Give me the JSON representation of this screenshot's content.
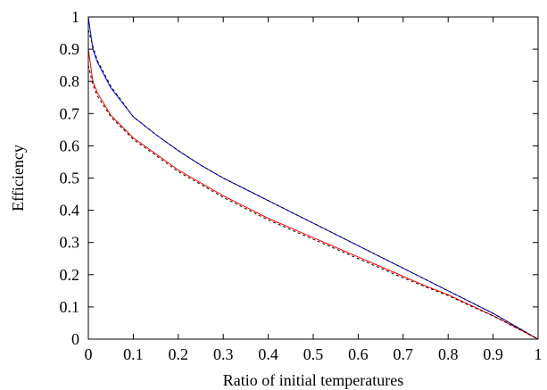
{
  "chart_data": {
    "type": "line",
    "title": "",
    "xlabel": "Ratio of initial temperatures",
    "ylabel": "Efficiency",
    "xlim": [
      0,
      1
    ],
    "ylim": [
      0,
      1
    ],
    "xticks": [
      "0",
      "0.1",
      "0.2",
      "0.3",
      "0.4",
      "0.5",
      "0.6",
      "0.7",
      "0.8",
      "0.9",
      "1"
    ],
    "yticks": [
      "0",
      "0.1",
      "0.2",
      "0.3",
      "0.4",
      "0.5",
      "0.6",
      "0.7",
      "0.8",
      "0.9",
      "1"
    ],
    "grid": false,
    "legend": "none",
    "series": [
      {
        "color": "#0000ff",
        "dash": "solid",
        "points": [
          [
            0,
            1.0
          ],
          [
            0.01,
            0.9
          ],
          [
            0.02,
            0.86
          ],
          [
            0.05,
            0.78
          ],
          [
            0.1,
            0.69
          ],
          [
            0.15,
            0.635
          ],
          [
            0.2,
            0.585
          ],
          [
            0.25,
            0.54
          ],
          [
            0.3,
            0.5
          ],
          [
            0.35,
            0.465
          ],
          [
            0.4,
            0.43
          ],
          [
            0.45,
            0.395
          ],
          [
            0.5,
            0.36
          ],
          [
            0.55,
            0.325
          ],
          [
            0.6,
            0.29
          ],
          [
            0.65,
            0.255
          ],
          [
            0.7,
            0.22
          ],
          [
            0.75,
            0.185
          ],
          [
            0.8,
            0.15
          ],
          [
            0.85,
            0.115
          ],
          [
            0.9,
            0.08
          ],
          [
            0.95,
            0.04
          ],
          [
            1,
            0
          ]
        ]
      },
      {
        "color": "#000000",
        "dash": "dashed",
        "points": [
          [
            0,
            0.96
          ],
          [
            0.01,
            0.91
          ],
          [
            0.02,
            0.865
          ],
          [
            0.05,
            0.785
          ],
          [
            0.1,
            0.69
          ],
          [
            0.15,
            0.635
          ],
          [
            0.2,
            0.585
          ],
          [
            0.25,
            0.54
          ],
          [
            0.3,
            0.5
          ],
          [
            0.35,
            0.465
          ],
          [
            0.4,
            0.43
          ],
          [
            0.45,
            0.395
          ],
          [
            0.5,
            0.36
          ],
          [
            0.55,
            0.325
          ],
          [
            0.6,
            0.29
          ],
          [
            0.65,
            0.255
          ],
          [
            0.7,
            0.22
          ],
          [
            0.75,
            0.185
          ],
          [
            0.8,
            0.15
          ],
          [
            0.85,
            0.115
          ],
          [
            0.9,
            0.08
          ],
          [
            0.95,
            0.04
          ],
          [
            1,
            0
          ]
        ]
      },
      {
        "color": "#ff0000",
        "dash": "solid",
        "points": [
          [
            0,
            0.9
          ],
          [
            0.01,
            0.8
          ],
          [
            0.02,
            0.765
          ],
          [
            0.05,
            0.695
          ],
          [
            0.1,
            0.625
          ],
          [
            0.15,
            0.575
          ],
          [
            0.2,
            0.525
          ],
          [
            0.25,
            0.485
          ],
          [
            0.3,
            0.445
          ],
          [
            0.35,
            0.41
          ],
          [
            0.4,
            0.375
          ],
          [
            0.45,
            0.345
          ],
          [
            0.5,
            0.315
          ],
          [
            0.55,
            0.285
          ],
          [
            0.6,
            0.255
          ],
          [
            0.65,
            0.225
          ],
          [
            0.7,
            0.195
          ],
          [
            0.75,
            0.165
          ],
          [
            0.8,
            0.138
          ],
          [
            0.85,
            0.105
          ],
          [
            0.9,
            0.073
          ],
          [
            0.95,
            0.037
          ],
          [
            1,
            0
          ]
        ]
      },
      {
        "color": "#000000",
        "dash": "dashed",
        "points": [
          [
            0,
            0.85
          ],
          [
            0.01,
            0.79
          ],
          [
            0.02,
            0.755
          ],
          [
            0.05,
            0.69
          ],
          [
            0.1,
            0.62
          ],
          [
            0.15,
            0.57
          ],
          [
            0.2,
            0.52
          ],
          [
            0.25,
            0.48
          ],
          [
            0.3,
            0.44
          ],
          [
            0.35,
            0.405
          ],
          [
            0.4,
            0.37
          ],
          [
            0.45,
            0.34
          ],
          [
            0.5,
            0.31
          ],
          [
            0.55,
            0.28
          ],
          [
            0.6,
            0.25
          ],
          [
            0.65,
            0.22
          ],
          [
            0.7,
            0.19
          ],
          [
            0.75,
            0.162
          ],
          [
            0.8,
            0.135
          ],
          [
            0.85,
            0.103
          ],
          [
            0.9,
            0.072
          ],
          [
            0.95,
            0.036
          ],
          [
            1,
            0
          ]
        ]
      }
    ]
  }
}
